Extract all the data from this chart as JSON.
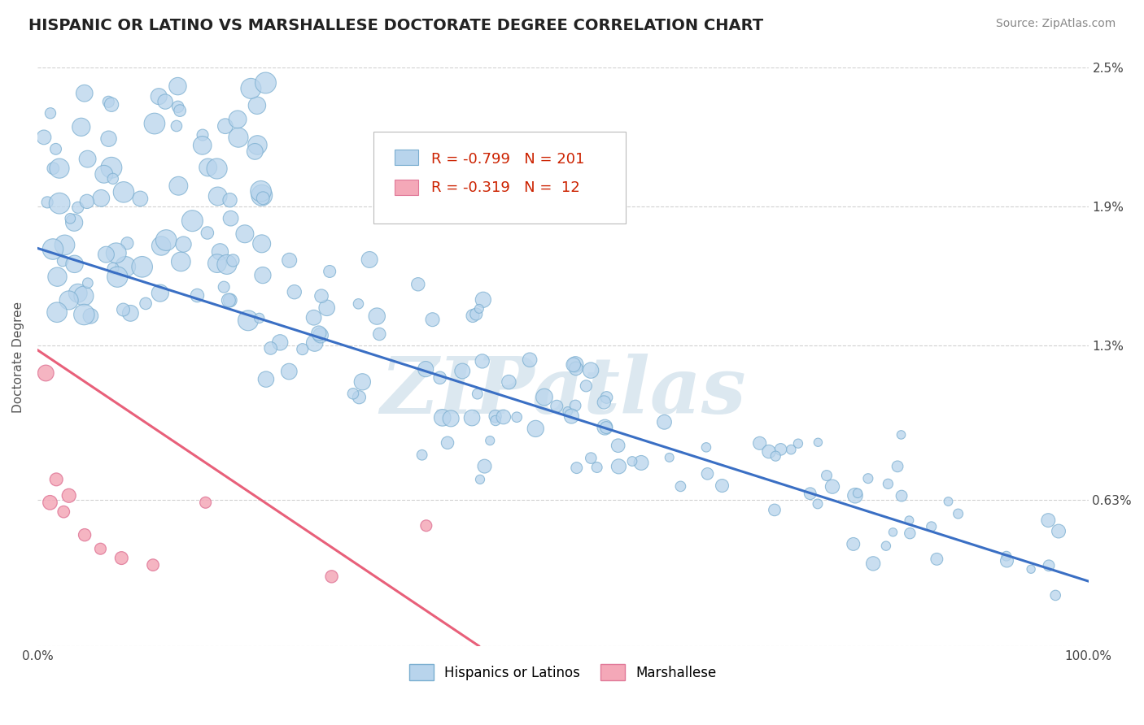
{
  "title": "HISPANIC OR LATINO VS MARSHALLESE DOCTORATE DEGREE CORRELATION CHART",
  "source_text": "Source: ZipAtlas.com",
  "ylabel": "Doctorate Degree",
  "xlim": [
    0,
    100
  ],
  "ylim": [
    0,
    2.5
  ],
  "blue_color": "#b8d4ec",
  "blue_edge": "#7aaed0",
  "pink_color": "#f4a8b8",
  "pink_edge": "#e07898",
  "blue_line_color": "#3a6fc4",
  "pink_line_color": "#e8607a",
  "watermark": "ZIPatlas",
  "watermark_color": "#dce8f0",
  "background_color": "#ffffff",
  "grid_color": "#cccccc",
  "title_fontsize": 14,
  "axis_label_fontsize": 11,
  "tick_fontsize": 11,
  "legend_r1_val": "-0.799",
  "legend_n1_val": "201",
  "legend_r2_val": "-0.319",
  "legend_n2_val": " 12",
  "blue_trend_x0": 0,
  "blue_trend_x1": 100,
  "blue_trend_y0": 1.72,
  "blue_trend_y1": 0.28,
  "pink_trend_x0": 0,
  "pink_trend_x1": 42,
  "pink_trend_y0": 1.28,
  "pink_trend_y1": 0.0
}
